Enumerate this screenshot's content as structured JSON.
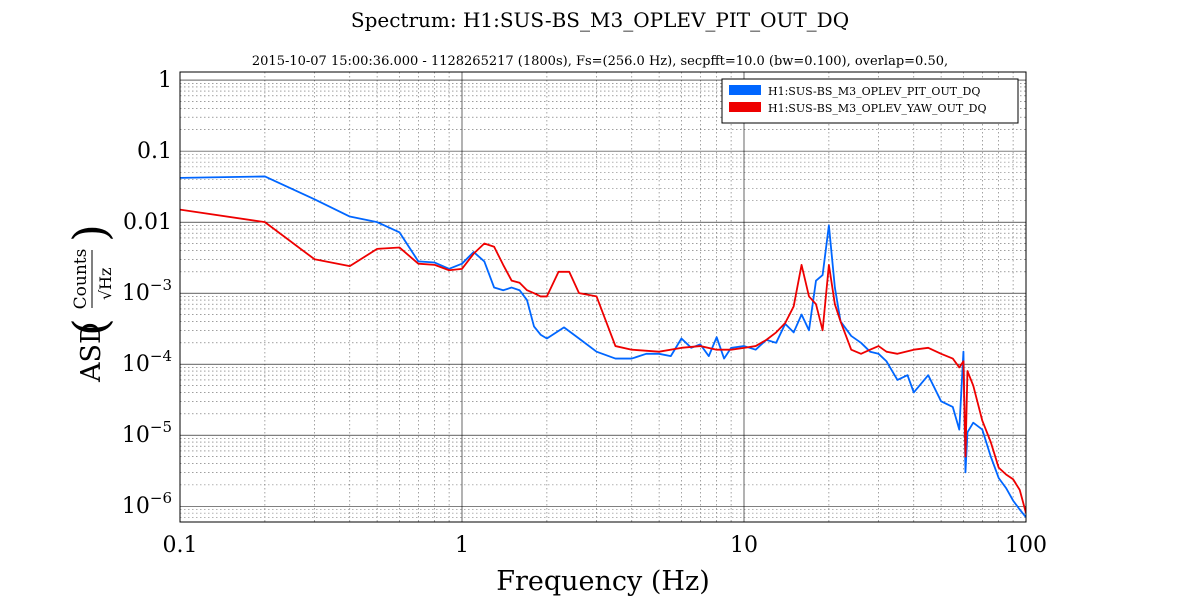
{
  "chart_data": {
    "type": "line",
    "title": "Spectrum: H1:SUS-BS_M3_OPLEV_PIT_OUT_DQ",
    "subtitle": "2015-10-07 15:00:36.000 - 1128265217 (1800s), Fs=(256.0 Hz), secpfft=10.0 (bw=0.100), overlap=0.50,",
    "xlabel": "Frequency (Hz)",
    "ylabel": {
      "prefix": "ASD",
      "numerator": "Counts",
      "denominator": "Hz"
    },
    "x_scale": "log",
    "y_scale": "log",
    "xlim": [
      0.1,
      100
    ],
    "ylim": [
      6e-07,
      1.3
    ],
    "grid": true,
    "legend_position": "top-right",
    "x_ticks": [
      {
        "value": 0.1,
        "label": "0.1"
      },
      {
        "value": 1,
        "label": "1"
      },
      {
        "value": 10,
        "label": "10"
      },
      {
        "value": 100,
        "label": "100"
      }
    ],
    "y_ticks": [
      {
        "value": 1,
        "base": "1",
        "exp": ""
      },
      {
        "value": 0.1,
        "base": "0.1",
        "exp": ""
      },
      {
        "value": 0.01,
        "base": "0.01",
        "exp": ""
      },
      {
        "value": 0.001,
        "base": "10",
        "exp": "−3"
      },
      {
        "value": 0.0001,
        "base": "10",
        "exp": "−4"
      },
      {
        "value": 1e-05,
        "base": "10",
        "exp": "−5"
      },
      {
        "value": 1e-06,
        "base": "10",
        "exp": "−6"
      }
    ],
    "series": [
      {
        "name": "H1:SUS-BS_M3_OPLEV_PIT_OUT_DQ",
        "color": "#0066ff",
        "points": [
          [
            0.1,
            0.042
          ],
          [
            0.2,
            0.044
          ],
          [
            0.3,
            0.021
          ],
          [
            0.4,
            0.012
          ],
          [
            0.5,
            0.01
          ],
          [
            0.6,
            0.0072
          ],
          [
            0.7,
            0.0028
          ],
          [
            0.8,
            0.0027
          ],
          [
            0.9,
            0.0022
          ],
          [
            1.0,
            0.0026
          ],
          [
            1.1,
            0.0038
          ],
          [
            1.2,
            0.0028
          ],
          [
            1.3,
            0.0012
          ],
          [
            1.4,
            0.0011
          ],
          [
            1.5,
            0.0012
          ],
          [
            1.6,
            0.0011
          ],
          [
            1.7,
            0.0008
          ],
          [
            1.8,
            0.00034
          ],
          [
            1.9,
            0.00026
          ],
          [
            2.0,
            0.00023
          ],
          [
            2.3,
            0.00033
          ],
          [
            2.6,
            0.00023
          ],
          [
            3.0,
            0.00015
          ],
          [
            3.5,
            0.00012
          ],
          [
            4.0,
            0.00012
          ],
          [
            4.5,
            0.00014
          ],
          [
            5.0,
            0.00014
          ],
          [
            5.5,
            0.00013
          ],
          [
            6.0,
            0.00023
          ],
          [
            6.5,
            0.00017
          ],
          [
            7.0,
            0.00019
          ],
          [
            7.5,
            0.00013
          ],
          [
            8.0,
            0.00024
          ],
          [
            8.5,
            0.00012
          ],
          [
            9.0,
            0.00017
          ],
          [
            10.0,
            0.00018
          ],
          [
            11.0,
            0.00016
          ],
          [
            12.0,
            0.00022
          ],
          [
            13.0,
            0.0002
          ],
          [
            14.0,
            0.00037
          ],
          [
            15.0,
            0.00028
          ],
          [
            16.0,
            0.0005
          ],
          [
            17.0,
            0.0003
          ],
          [
            18.0,
            0.0015
          ],
          [
            19.0,
            0.0018
          ],
          [
            20.0,
            0.009
          ],
          [
            21.0,
            0.0012
          ],
          [
            22.0,
            0.0004
          ],
          [
            24.0,
            0.00025
          ],
          [
            26.0,
            0.0002
          ],
          [
            28.0,
            0.00015
          ],
          [
            30.0,
            0.00014
          ],
          [
            32.0,
            0.00011
          ],
          [
            35.0,
            6e-05
          ],
          [
            38.0,
            7e-05
          ],
          [
            40.0,
            4e-05
          ],
          [
            45.0,
            7e-05
          ],
          [
            50.0,
            3e-05
          ],
          [
            55.0,
            2.5e-05
          ],
          [
            58.0,
            1.2e-05
          ],
          [
            60.0,
            0.00015
          ],
          [
            61.0,
            3e-06
          ],
          [
            62.0,
            1.1e-05
          ],
          [
            65.0,
            1.5e-05
          ],
          [
            70.0,
            1.2e-05
          ],
          [
            75.0,
            5e-06
          ],
          [
            80.0,
            2.5e-06
          ],
          [
            85.0,
            1.8e-06
          ],
          [
            90.0,
            1.2e-06
          ],
          [
            95.0,
            9e-07
          ],
          [
            100.0,
            7e-07
          ]
        ]
      },
      {
        "name": "H1:SUS-BS_M3_OPLEV_YAW_OUT_DQ",
        "color": "#ee0000",
        "points": [
          [
            0.1,
            0.015
          ],
          [
            0.2,
            0.01
          ],
          [
            0.3,
            0.003
          ],
          [
            0.4,
            0.0024
          ],
          [
            0.5,
            0.0042
          ],
          [
            0.6,
            0.0044
          ],
          [
            0.7,
            0.0026
          ],
          [
            0.8,
            0.0025
          ],
          [
            0.9,
            0.0021
          ],
          [
            1.0,
            0.0022
          ],
          [
            1.1,
            0.0036
          ],
          [
            1.2,
            0.005
          ],
          [
            1.3,
            0.0045
          ],
          [
            1.4,
            0.0025
          ],
          [
            1.5,
            0.0015
          ],
          [
            1.6,
            0.0014
          ],
          [
            1.7,
            0.0011
          ],
          [
            1.8,
            0.001
          ],
          [
            1.9,
            0.0009
          ],
          [
            2.0,
            0.0009
          ],
          [
            2.2,
            0.002
          ],
          [
            2.4,
            0.002
          ],
          [
            2.6,
            0.001
          ],
          [
            3.0,
            0.0009
          ],
          [
            3.5,
            0.00018
          ],
          [
            4.0,
            0.00016
          ],
          [
            5.0,
            0.00015
          ],
          [
            6.0,
            0.00017
          ],
          [
            7.0,
            0.00018
          ],
          [
            8.0,
            0.00016
          ],
          [
            9.0,
            0.00016
          ],
          [
            10.0,
            0.00017
          ],
          [
            11.0,
            0.00018
          ],
          [
            12.0,
            0.00022
          ],
          [
            13.0,
            0.00028
          ],
          [
            14.0,
            0.00038
          ],
          [
            15.0,
            0.00065
          ],
          [
            16.0,
            0.0025
          ],
          [
            17.0,
            0.0009
          ],
          [
            18.0,
            0.0007
          ],
          [
            19.0,
            0.0003
          ],
          [
            20.0,
            0.0025
          ],
          [
            21.0,
            0.0007
          ],
          [
            22.0,
            0.0004
          ],
          [
            24.0,
            0.00016
          ],
          [
            26.0,
            0.00014
          ],
          [
            28.0,
            0.00016
          ],
          [
            30.0,
            0.00018
          ],
          [
            32.0,
            0.00015
          ],
          [
            35.0,
            0.00014
          ],
          [
            40.0,
            0.00016
          ],
          [
            45.0,
            0.00017
          ],
          [
            50.0,
            0.00014
          ],
          [
            55.0,
            0.00012
          ],
          [
            58.0,
            9e-05
          ],
          [
            60.0,
            0.00011
          ],
          [
            61.0,
            5e-06
          ],
          [
            62.0,
            8e-05
          ],
          [
            65.0,
            5e-05
          ],
          [
            70.0,
            1.6e-05
          ],
          [
            75.0,
            8e-06
          ],
          [
            80.0,
            3.5e-06
          ],
          [
            85.0,
            2.8e-06
          ],
          [
            90.0,
            2.4e-06
          ],
          [
            95.0,
            1.7e-06
          ],
          [
            100.0,
            8e-07
          ]
        ]
      }
    ]
  }
}
